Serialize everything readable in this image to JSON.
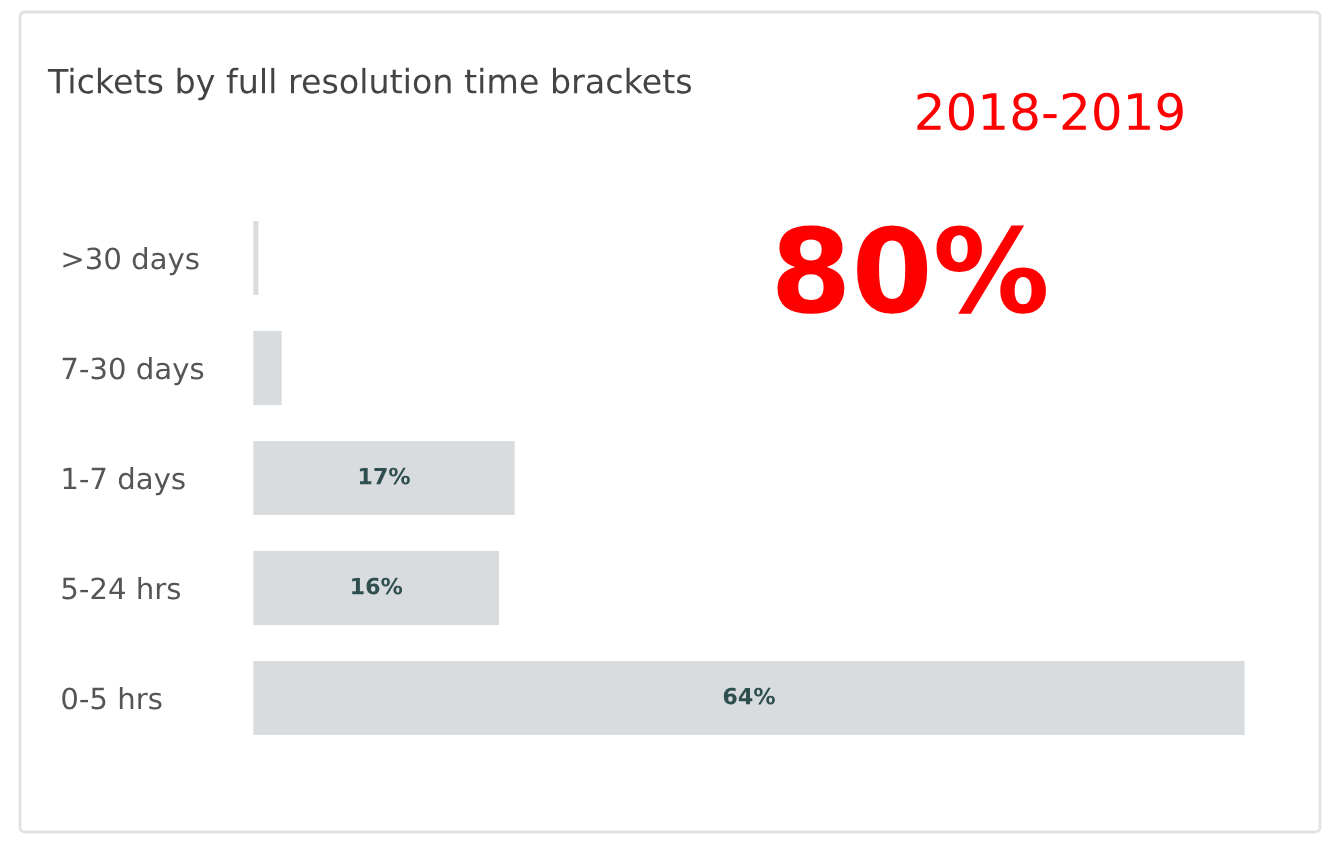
{
  "chart_data": {
    "type": "bar",
    "orientation": "horizontal",
    "title": "Tickets by full resolution time brackets",
    "categories": [
      ">30 days",
      "7-30 days",
      "1-7 days",
      "5-24 hrs",
      "0-5 hrs"
    ],
    "values": [
      0.5,
      2,
      17,
      16,
      64
    ],
    "value_labels": [
      null,
      null,
      "17%",
      "16%",
      "64%"
    ],
    "color": "#d8dcdf",
    "xlim": [
      0,
      64
    ],
    "grid": false,
    "legend": false,
    "annotations": [
      "2018-2019",
      "80%"
    ]
  }
}
